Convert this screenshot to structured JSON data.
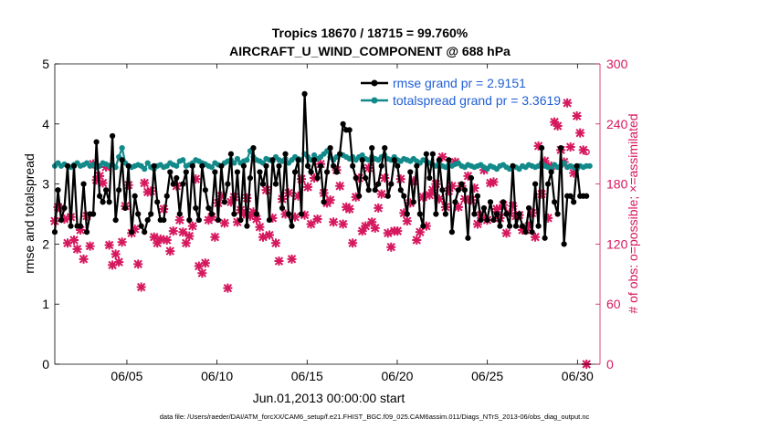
{
  "chart_data": {
    "type": "line",
    "title_line1": "Tropics 18670 / 18715 = 99.760%",
    "title_line2": "AIRCRAFT_U_WIND_COMPONENT @ 688 hPa",
    "xlabel": "Jun.01,2013 00:00:00 start",
    "ylabel_left": "rmse and totalspread",
    "ylabel_right": "# of obs: o=possible; ×=assimilated",
    "footnote": "data file: /Users/raeder/DAI/ATM_forcXX/CAM6_setup/f.e21.FHIST_BGC.f09_025.CAM6assim.011/Diags_NTrS_2013-06/obs_diag_output.nc",
    "xlim": [
      1.0,
      31.25
    ],
    "ylim_left": [
      0,
      5
    ],
    "ylim_right": [
      0,
      300
    ],
    "x_ticks": [
      5,
      10,
      15,
      20,
      25,
      30
    ],
    "x_tick_labels": [
      "06/05",
      "06/10",
      "06/15",
      "06/20",
      "06/25",
      "06/30"
    ],
    "y_left_ticks": [
      "0",
      "1",
      "2",
      "3",
      "4",
      "5"
    ],
    "y_right_ticks": [
      "0",
      "60",
      "120",
      "180",
      "240",
      "300"
    ],
    "colors": {
      "rmse": "#000000",
      "spread": "#138a8a",
      "obs": "#d6185e",
      "legend_text": "#1f5fd6",
      "right_axis": "#d6185e"
    },
    "legend": [
      {
        "label": "rmse grand pr = 2.9151",
        "series": "rmse"
      },
      {
        "label": "totalspread grand pr = 3.3619",
        "series": "spread"
      }
    ],
    "series": [
      {
        "name": "rmse",
        "axis": "left",
        "values": [
          2.2,
          2.9,
          2.4,
          2.6,
          3.3,
          2.3,
          3.3,
          2.3,
          2.3,
          3.0,
          2.2,
          2.5,
          2.5,
          3.7,
          2.8,
          2.7,
          2.9,
          2.7,
          3.8,
          2.4,
          2.9,
          3.4,
          2.6,
          3.3,
          2.2,
          2.8,
          2.5,
          2.3,
          2.2,
          2.4,
          2.5,
          3.3,
          2.7,
          2.4,
          2.4,
          2.8,
          3.2,
          3.0,
          3.1,
          2.5,
          3.0,
          3.2,
          2.4,
          3.3,
          2.6,
          2.4,
          3.3,
          2.9,
          2.6,
          2.5,
          3.2,
          2.4,
          3.3,
          2.7,
          3.0,
          3.5,
          2.5,
          3.2,
          2.4,
          3.3,
          2.3,
          3.1,
          3.6,
          2.5,
          3.2,
          3.0,
          3.3,
          2.4,
          3.4,
          3.0,
          3.3,
          2.6,
          3.5,
          2.5,
          2.3,
          3.2,
          3.4,
          2.5,
          4.5,
          3.3,
          3.2,
          3.4,
          3.1,
          3.3,
          2.7,
          3.2,
          3.6,
          3.3,
          3.2,
          3.5,
          4.0,
          3.9,
          3.9,
          3.3,
          3.1,
          2.8,
          3.4,
          3.1,
          2.9,
          3.6,
          2.9,
          3.0,
          3.3,
          3.6,
          2.8,
          3.0,
          3.4,
          3.3,
          2.9,
          2.8,
          2.5,
          3.2,
          2.7,
          3.3,
          2.5,
          2.3,
          3.5,
          3.1,
          3.5,
          2.5,
          3.4,
          2.9,
          2.5,
          3.4,
          2.2,
          2.7,
          2.9,
          3.0,
          2.9,
          2.1,
          3.1,
          2.5,
          2.8,
          2.4,
          2.6,
          2.4,
          2.7,
          2.4,
          2.5,
          2.3,
          2.7,
          2.5,
          2.3,
          3.3,
          2.3,
          2.5,
          2.3,
          2.2,
          2.6,
          2.2,
          3.0,
          2.3,
          3.6,
          2.1,
          3.0,
          3.2,
          2.7,
          2.5,
          3.6,
          2.0,
          2.8,
          2.8,
          2.7,
          3.3,
          2.8,
          2.8,
          2.8
        ]
      },
      {
        "name": "totalspread",
        "axis": "left",
        "values": [
          3.3,
          3.35,
          3.3,
          3.33,
          3.3,
          3.28,
          3.32,
          3.35,
          3.3,
          3.32,
          3.35,
          3.3,
          3.32,
          3.28,
          3.3,
          3.35,
          3.33,
          3.3,
          3.32,
          3.28,
          3.45,
          3.6,
          3.35,
          3.3,
          3.28,
          3.3,
          3.32,
          3.3,
          3.25,
          3.35,
          3.28,
          3.25,
          3.3,
          3.32,
          3.28,
          3.3,
          3.35,
          3.32,
          3.3,
          3.38,
          3.4,
          3.3,
          3.32,
          3.35,
          3.4,
          3.38,
          3.35,
          3.33,
          3.3,
          3.28,
          3.35,
          3.32,
          3.3,
          3.35,
          3.38,
          3.4,
          3.35,
          3.42,
          3.35,
          3.38,
          3.4,
          3.55,
          3.45,
          3.4,
          3.38,
          3.35,
          3.42,
          3.4,
          3.38,
          3.45,
          3.4,
          3.38,
          3.42,
          3.35,
          3.4,
          3.45,
          3.42,
          3.4,
          3.5,
          3.45,
          3.4,
          3.48,
          3.42,
          3.45,
          3.5,
          3.55,
          3.45,
          3.4,
          3.45,
          3.5,
          3.48,
          3.45,
          3.42,
          3.45,
          3.4,
          3.45,
          3.48,
          3.42,
          3.4,
          3.45,
          3.42,
          3.4,
          3.45,
          3.48,
          3.42,
          3.4,
          3.45,
          3.4,
          3.38,
          3.42,
          3.4,
          3.38,
          3.42,
          3.38,
          3.35,
          3.4,
          3.38,
          3.35,
          3.32,
          3.3,
          3.35,
          3.3,
          3.28,
          3.32,
          3.3,
          3.33,
          3.35,
          3.3,
          3.28,
          3.32,
          3.3,
          3.28,
          3.3,
          3.32,
          3.28,
          3.25,
          3.3,
          3.28,
          3.25,
          3.3,
          3.32,
          3.28,
          3.25,
          3.3,
          3.28,
          3.25,
          3.3,
          3.28,
          3.32,
          3.3,
          3.28,
          3.3,
          3.35,
          3.3,
          3.28,
          3.25,
          3.32,
          3.28,
          3.3,
          3.35,
          3.28,
          3.3,
          3.28,
          3.25,
          3.3,
          3.28,
          3.3,
          3.3
        ]
      },
      {
        "name": "obs_possible",
        "axis": "right",
        "values": [
          143,
          157,
          156,
          145,
          121,
          147,
          124,
          115,
          134,
          105,
          148,
          118,
          200,
          184,
          188,
          181,
          197,
          119,
          99,
          110,
          102,
          122,
          158,
          179,
          131,
          135,
          100,
          77,
          181,
          172,
          173,
          127,
          121,
          125,
          155,
          124,
          113,
          133,
          178,
          144,
          132,
          121,
          128,
          138,
          185,
          98,
          91,
          101,
          144,
          147,
          127,
          161,
          168,
          141,
          76,
          162,
          167,
          142,
          154,
          150,
          166,
          148,
          152,
          145,
          137,
          127,
          174,
          129,
          146,
          121,
          103,
          165,
          150,
          171,
          105,
          147,
          168,
          185,
          149,
          177,
          140,
          186,
          145,
          200,
          171,
          161,
          164,
          142,
          194,
          178,
          140,
          157,
          155,
          121,
          167,
          186,
          133,
          138,
          196,
          142,
          136,
          156,
          170,
          186,
          131,
          117,
          133,
          133,
          185,
          151,
          143,
          161,
          183,
          124,
          132,
          167,
          138,
          169,
          174,
          180,
          165,
          207,
          157,
          173,
          178,
          202,
          157,
          178,
          165,
          188,
          164,
          176,
          140,
          149,
          194,
          144,
          181,
          182,
          155,
          146,
          159,
          131,
          151,
          158,
          148,
          149,
          134,
          134,
          138,
          151,
          127,
          218,
          170,
          203,
          146,
          198,
          242,
          238,
          214,
          202,
          261,
          217,
          191,
          248,
          231,
          214,
          212
        ]
      },
      {
        "name": "obs_assimilated",
        "axis": "right",
        "values": [
          143,
          157,
          156,
          145,
          121,
          147,
          124,
          115,
          134,
          105,
          148,
          118,
          200,
          184,
          188,
          181,
          197,
          119,
          99,
          110,
          102,
          122,
          158,
          179,
          131,
          135,
          100,
          77,
          181,
          172,
          173,
          127,
          121,
          125,
          155,
          124,
          113,
          133,
          178,
          144,
          132,
          121,
          128,
          138,
          185,
          98,
          91,
          101,
          144,
          147,
          127,
          161,
          168,
          141,
          76,
          162,
          167,
          142,
          154,
          150,
          166,
          148,
          152,
          145,
          137,
          127,
          174,
          129,
          146,
          121,
          103,
          165,
          150,
          171,
          105,
          147,
          168,
          185,
          149,
          177,
          140,
          186,
          145,
          200,
          171,
          161,
          164,
          142,
          194,
          178,
          140,
          157,
          155,
          121,
          167,
          186,
          133,
          138,
          196,
          142,
          136,
          156,
          170,
          186,
          131,
          117,
          133,
          133,
          185,
          151,
          143,
          161,
          183,
          124,
          132,
          167,
          138,
          169,
          174,
          180,
          165,
          207,
          157,
          173,
          178,
          202,
          157,
          178,
          165,
          188,
          164,
          176,
          140,
          149,
          194,
          144,
          181,
          182,
          155,
          146,
          159,
          131,
          151,
          158,
          148,
          149,
          134,
          134,
          138,
          151,
          127,
          218,
          170,
          203,
          146,
          198,
          242,
          238,
          214,
          202,
          261,
          217,
          191,
          248,
          231,
          214,
          0
        ]
      }
    ]
  }
}
